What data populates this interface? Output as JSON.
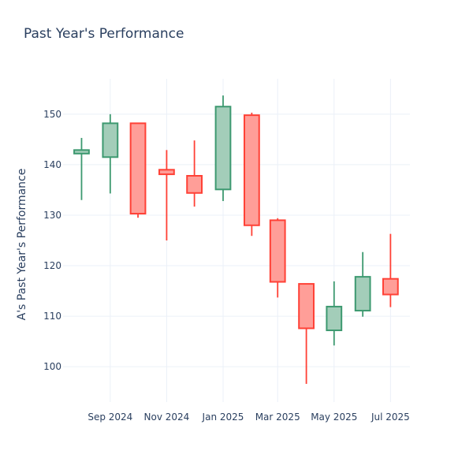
{
  "chart_data": {
    "type": "candlestick",
    "title": "Past Year's Performance",
    "xlabel": "",
    "ylabel": "A's Past Year's Performance",
    "ylim": [
      93,
      157
    ],
    "xlim": [
      "2024-07-12",
      "2025-07-22"
    ],
    "x_ticks": [
      {
        "date": "2024-09-01",
        "label": "Sep 2024"
      },
      {
        "date": "2024-11-01",
        "label": "Nov 2024"
      },
      {
        "date": "2025-01-01",
        "label": "Jan 2025"
      },
      {
        "date": "2025-03-01",
        "label": "Mar 2025"
      },
      {
        "date": "2025-05-01",
        "label": "May 2025"
      },
      {
        "date": "2025-07-01",
        "label": "Jul 2025"
      }
    ],
    "y_ticks": [
      100,
      110,
      120,
      130,
      140,
      150
    ],
    "grid": true,
    "colors": {
      "increasing_line": "#3d9970",
      "increasing_fill": "#a3cdb9",
      "decreasing_line": "#ff4136",
      "decreasing_fill": "#ff9e98",
      "text": "#2a3f5f",
      "grid": "#ebf0f8"
    },
    "candles": [
      {
        "date": "2024-08-01",
        "open": 142.2,
        "high": 145.3,
        "low": 133.0,
        "close": 142.9
      },
      {
        "date": "2024-09-01",
        "open": 141.5,
        "high": 150.0,
        "low": 134.3,
        "close": 148.2
      },
      {
        "date": "2024-10-01",
        "open": 148.2,
        "high": 148.2,
        "low": 129.5,
        "close": 130.3
      },
      {
        "date": "2024-11-01",
        "open": 139.0,
        "high": 142.9,
        "low": 125.0,
        "close": 138.1
      },
      {
        "date": "2024-12-01",
        "open": 137.8,
        "high": 144.8,
        "low": 131.7,
        "close": 134.4
      },
      {
        "date": "2025-01-01",
        "open": 135.1,
        "high": 153.7,
        "low": 132.8,
        "close": 151.5
      },
      {
        "date": "2025-02-01",
        "open": 149.8,
        "high": 150.3,
        "low": 125.9,
        "close": 128.0
      },
      {
        "date": "2025-03-01",
        "open": 129.0,
        "high": 129.4,
        "low": 113.7,
        "close": 116.8
      },
      {
        "date": "2025-04-01",
        "open": 116.4,
        "high": 116.4,
        "low": 96.6,
        "close": 107.6
      },
      {
        "date": "2025-05-01",
        "open": 107.2,
        "high": 116.9,
        "low": 104.2,
        "close": 111.9
      },
      {
        "date": "2025-06-01",
        "open": 111.1,
        "high": 122.7,
        "low": 109.9,
        "close": 117.8
      },
      {
        "date": "2025-07-01",
        "open": 117.4,
        "high": 126.3,
        "low": 111.8,
        "close": 114.3
      }
    ]
  }
}
